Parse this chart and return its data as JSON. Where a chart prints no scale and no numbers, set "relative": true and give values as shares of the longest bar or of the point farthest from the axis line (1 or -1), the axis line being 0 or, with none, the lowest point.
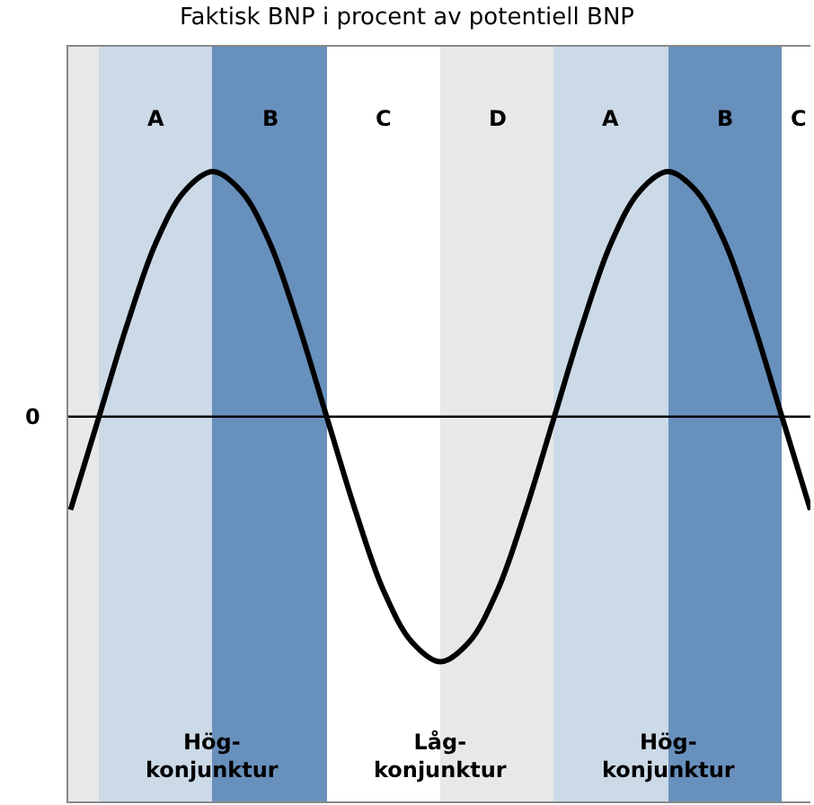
{
  "chart_data": [
    {
      "type": "bar",
      "relative": true,
      "tick_labels": "x",
      "categories": [
        null,
        "A",
        "B",
        "C",
        "D",
        "A",
        "B",
        "C"
      ],
      "values": [
        1,
        1,
        1,
        null,
        1,
        1,
        1,
        null
      ],
      "colors": [
        "#e8e8e8",
        "#ccdae8",
        "#6890bc",
        "#ffffff",
        "#e8e8e8",
        "#ccdae8",
        "#6890bc",
        "#ffffff"
      ],
      "annotations": [
        "Hög-\nkonjunktur",
        "Låg-\nkonjunktur",
        "Hög-\nkonjunktur"
      ]
    },
    {
      "type": "line",
      "title": "Faktisk BNP i procent av potentiell BNP",
      "relative": true,
      "tick_labels": false,
      "marker": "none",
      "line_style": "solid",
      "categories": [
        null,
        null,
        null,
        null,
        null,
        null,
        null,
        null,
        null,
        null,
        null,
        null,
        null,
        null,
        null,
        null,
        null,
        null,
        null,
        null,
        null,
        null,
        null,
        null,
        null,
        null,
        null
      ],
      "series": [
        {
          "color": "#000000",
          "values": [
            -0.38,
            0,
            0.38,
            0.71,
            0.92,
            1,
            0.92,
            0.71,
            0.38,
            0,
            -0.38,
            -0.71,
            -0.92,
            -1,
            -0.92,
            -0.71,
            -0.38,
            0,
            0.38,
            0.71,
            0.92,
            1,
            0.92,
            0.71,
            0.38,
            0,
            -0.38
          ]
        }
      ],
      "ref_lines": [
        {
          "axis": "y",
          "value": 0,
          "label": "0",
          "color": "#000000"
        }
      ]
    }
  ]
}
